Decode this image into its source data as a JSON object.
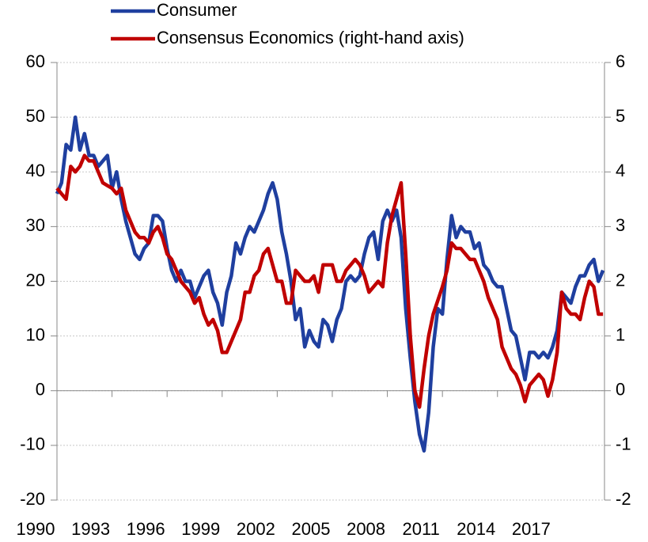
{
  "chart_data": {
    "type": "line",
    "x": [
      1990,
      1990.25,
      1990.5,
      1990.75,
      1991,
      1991.25,
      1991.5,
      1991.75,
      1992,
      1992.25,
      1992.5,
      1992.75,
      1993,
      1993.25,
      1993.5,
      1993.75,
      1994,
      1994.25,
      1994.5,
      1994.75,
      1995,
      1995.25,
      1995.5,
      1995.75,
      1996,
      1996.25,
      1996.5,
      1996.75,
      1997,
      1997.25,
      1997.5,
      1997.75,
      1998,
      1998.25,
      1998.5,
      1998.75,
      1999,
      1999.25,
      1999.5,
      1999.75,
      2000,
      2000.25,
      2000.5,
      2000.75,
      2001,
      2001.25,
      2001.5,
      2001.75,
      2002,
      2002.25,
      2002.5,
      2002.75,
      2003,
      2003.25,
      2003.5,
      2003.75,
      2004,
      2004.25,
      2004.5,
      2004.75,
      2005,
      2005.25,
      2005.5,
      2005.75,
      2006,
      2006.25,
      2006.5,
      2006.75,
      2007,
      2007.25,
      2007.5,
      2007.75,
      2008,
      2008.25,
      2008.5,
      2008.75,
      2009,
      2009.25,
      2009.5,
      2009.75,
      2010,
      2010.25,
      2010.5,
      2010.75,
      2011,
      2011.25,
      2011.5,
      2011.75,
      2012,
      2012.25,
      2012.5,
      2012.75,
      2013,
      2013.25,
      2013.5,
      2013.75,
      2014,
      2014.25,
      2014.5,
      2014.75,
      2015,
      2015.25,
      2015.5,
      2015.75,
      2016,
      2016.25,
      2016.5,
      2016.75,
      2017,
      2017.25,
      2017.5,
      2017.75,
      2018,
      2018.25,
      2018.5,
      2018.75,
      2019,
      2019.25,
      2019.5,
      2019.75
    ],
    "series": [
      {
        "name": "Consumer",
        "color": "#1f3f9f",
        "values": [
          36,
          38,
          45,
          44,
          50,
          44,
          47,
          43,
          43,
          41,
          42,
          43,
          37,
          40,
          35,
          31,
          28,
          25,
          24,
          26,
          27,
          32,
          32,
          31,
          26,
          22,
          20,
          22,
          20,
          20,
          17,
          19,
          21,
          22,
          18,
          16,
          12,
          18,
          21,
          27,
          25,
          28,
          30,
          29,
          31,
          33,
          36,
          38,
          35,
          29,
          25,
          20,
          13,
          15,
          8,
          11,
          9,
          8,
          13,
          12,
          9,
          13,
          15,
          20,
          21,
          20,
          21,
          25,
          28,
          29,
          24,
          31,
          33,
          31,
          33,
          28,
          15,
          6,
          -2,
          -8,
          -11,
          -4,
          8,
          15,
          14,
          24,
          32,
          28,
          30,
          29,
          29,
          26,
          27,
          23,
          22,
          20,
          19,
          19,
          15,
          11,
          10,
          6,
          2,
          7,
          7,
          6,
          7,
          6,
          8,
          11,
          18,
          17,
          16,
          19,
          21,
          21,
          23,
          24,
          20,
          22
        ]
      },
      {
        "name": "Consensus Economics (right-hand axis)",
        "color": "#c00000",
        "axis": "y2",
        "values": [
          3.7,
          3.6,
          3.5,
          4.1,
          4.0,
          4.1,
          4.3,
          4.2,
          4.2,
          4.0,
          3.8,
          3.75,
          3.7,
          3.6,
          3.7,
          3.3,
          3.1,
          2.9,
          2.8,
          2.8,
          2.7,
          2.9,
          3.0,
          2.8,
          2.5,
          2.4,
          2.2,
          2.0,
          1.9,
          1.8,
          1.6,
          1.7,
          1.4,
          1.2,
          1.3,
          1.1,
          0.7,
          0.7,
          0.9,
          1.1,
          1.3,
          1.8,
          1.8,
          2.1,
          2.2,
          2.5,
          2.6,
          2.3,
          2.0,
          2.0,
          1.6,
          1.6,
          2.2,
          2.1,
          2.0,
          2.0,
          2.1,
          1.8,
          2.3,
          2.3,
          2.3,
          2.0,
          2.0,
          2.2,
          2.3,
          2.4,
          2.3,
          2.1,
          1.8,
          1.9,
          2.0,
          1.9,
          2.7,
          3.2,
          3.5,
          3.8,
          2.5,
          1.0,
          0.0,
          -0.3,
          0.4,
          1.0,
          1.4,
          1.65,
          1.9,
          2.2,
          2.7,
          2.6,
          2.6,
          2.5,
          2.4,
          2.4,
          2.2,
          2.0,
          1.7,
          1.5,
          1.3,
          0.8,
          0.6,
          0.4,
          0.3,
          0.1,
          -0.2,
          0.1,
          0.2,
          0.3,
          0.2,
          -0.1,
          0.2,
          0.7,
          1.8,
          1.5,
          1.4,
          1.4,
          1.3,
          1.7,
          2.0,
          1.9,
          1.4,
          1.4
        ]
      }
    ],
    "xlim": [
      1990,
      2019.83
    ],
    "xticks": [
      1990,
      1993,
      1996,
      1999,
      2002,
      2005,
      2008,
      2011,
      2014,
      2017
    ],
    "ylim": [
      -20,
      60
    ],
    "yticks": [
      -20,
      -10,
      0,
      10,
      20,
      30,
      40,
      50,
      60
    ],
    "y2lim": [
      -2,
      6
    ],
    "y2ticks": [
      -2,
      -1,
      0,
      1,
      2,
      3,
      4,
      5,
      6
    ],
    "grid": true
  }
}
